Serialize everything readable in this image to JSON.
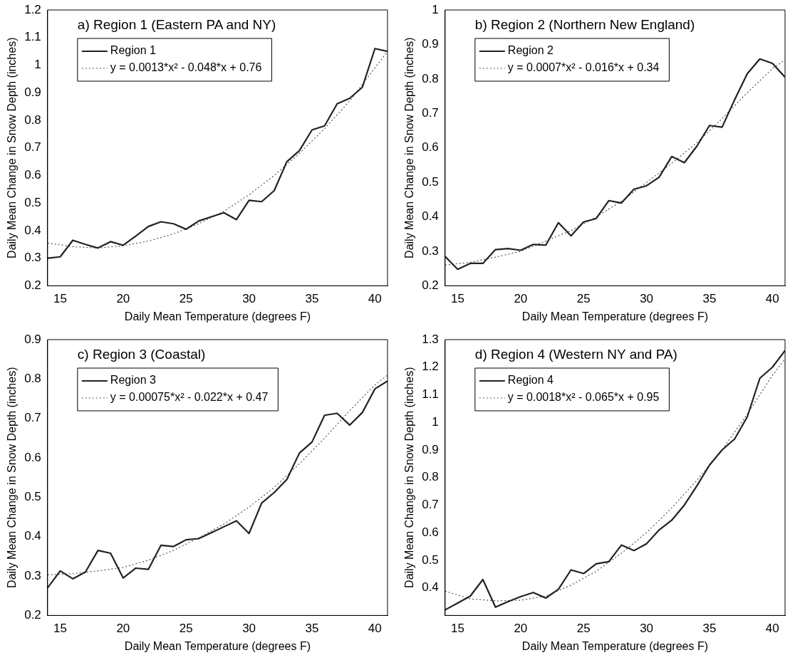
{
  "chart_data": [
    {
      "type": "line",
      "title": "a) Region 1 (Eastern PA and NY)",
      "xlabel": "Daily Mean Temperature (degrees F)",
      "ylabel": "Daily Mean Change in Snow Depth (inches)",
      "legend": "top left",
      "marker": "none",
      "xlim": [
        14,
        41
      ],
      "xticks": [
        15,
        20,
        25,
        30,
        35,
        40
      ],
      "ylim": [
        0.2,
        1.2
      ],
      "yticks": [
        0.2,
        0.3,
        0.4,
        0.5,
        0.6,
        0.7,
        0.8,
        0.9,
        1,
        1.1,
        1.2
      ],
      "x": [
        14,
        15,
        16,
        17,
        18,
        19,
        20,
        21,
        22,
        23,
        24,
        25,
        26,
        27,
        28,
        29,
        30,
        31,
        32,
        33,
        34,
        35,
        36,
        37,
        38,
        39,
        40,
        41
      ],
      "series": [
        {
          "name": "Region 1",
          "color": "#222222",
          "line_style": "solid",
          "values": [
            0.3,
            0.305,
            0.365,
            0.35,
            0.337,
            0.36,
            0.347,
            0.38,
            0.415,
            0.432,
            0.425,
            0.405,
            0.435,
            0.45,
            0.465,
            0.44,
            0.51,
            0.505,
            0.545,
            0.65,
            0.69,
            0.765,
            0.78,
            0.86,
            0.88,
            0.92,
            1.06,
            1.05
          ]
        },
        {
          "name": "y = 0.0013*x² - 0.048*x + 0.76",
          "color": "#555555",
          "line_style": "dotted",
          "x": [
            14,
            16,
            18,
            20,
            22,
            24,
            26,
            28,
            30,
            32,
            34,
            36,
            38,
            40,
            41
          ],
          "values": [
            0.355,
            0.342,
            0.337,
            0.345,
            0.362,
            0.388,
            0.425,
            0.47,
            0.53,
            0.6,
            0.68,
            0.77,
            0.87,
            0.99,
            1.05
          ]
        }
      ]
    },
    {
      "type": "line",
      "title": "b) Region 2 (Northern New England)",
      "xlabel": "Daily Mean Temperature (degrees F)",
      "ylabel": "Daily Mean Change in Snow Depth (inches)",
      "legend": "top left",
      "marker": "none",
      "xlim": [
        14,
        41
      ],
      "xticks": [
        15,
        20,
        25,
        30,
        35,
        40
      ],
      "ylim": [
        0.2,
        1
      ],
      "yticks": [
        0.2,
        0.3,
        0.4,
        0.5,
        0.6,
        0.7,
        0.8,
        0.9,
        1
      ],
      "x": [
        14,
        15,
        16,
        17,
        18,
        19,
        20,
        21,
        22,
        23,
        24,
        25,
        26,
        27,
        28,
        29,
        30,
        31,
        32,
        33,
        34,
        35,
        36,
        37,
        38,
        39,
        40,
        41
      ],
      "series": [
        {
          "name": "Region 2",
          "color": "#222222",
          "line_style": "solid",
          "values": [
            0.285,
            0.248,
            0.265,
            0.265,
            0.305,
            0.308,
            0.303,
            0.32,
            0.318,
            0.383,
            0.345,
            0.385,
            0.395,
            0.447,
            0.44,
            0.48,
            0.49,
            0.515,
            0.575,
            0.557,
            0.605,
            0.665,
            0.66,
            0.74,
            0.815,
            0.858,
            0.845,
            0.805
          ]
        },
        {
          "name": "y = 0.0007*x² - 0.016*x + 0.34",
          "color": "#555555",
          "line_style": "dotted",
          "x": [
            14,
            16,
            18,
            20,
            22,
            24,
            26,
            28,
            30,
            32,
            34,
            36,
            38,
            40,
            41
          ],
          "values": [
            0.26,
            0.268,
            0.283,
            0.3,
            0.33,
            0.36,
            0.4,
            0.445,
            0.5,
            0.555,
            0.615,
            0.685,
            0.76,
            0.83,
            0.855
          ]
        }
      ]
    },
    {
      "type": "line",
      "title": "c) Region 3 (Coastal)",
      "xlabel": "Daily Mean Temperature (degrees F)",
      "ylabel": "Daily Mean Change in Snow Depth (inches)",
      "legend": "top left",
      "marker": "none",
      "xlim": [
        14,
        41
      ],
      "xticks": [
        15,
        20,
        25,
        30,
        35,
        40
      ],
      "ylim": [
        0.2,
        0.9
      ],
      "yticks": [
        0.2,
        0.3,
        0.4,
        0.5,
        0.6,
        0.7,
        0.8,
        0.9
      ],
      "x": [
        14,
        15,
        16,
        17,
        18,
        19,
        20,
        21,
        22,
        23,
        24,
        25,
        26,
        27,
        28,
        29,
        30,
        31,
        32,
        33,
        34,
        35,
        36,
        37,
        38,
        39,
        40,
        41
      ],
      "series": [
        {
          "name": "Region 3",
          "color": "#222222",
          "line_style": "solid",
          "values": [
            0.27,
            0.313,
            0.293,
            0.31,
            0.365,
            0.358,
            0.295,
            0.32,
            0.317,
            0.378,
            0.375,
            0.392,
            0.395,
            0.41,
            0.425,
            0.44,
            0.408,
            0.485,
            0.512,
            0.545,
            0.612,
            0.64,
            0.708,
            0.713,
            0.683,
            0.715,
            0.775,
            0.795
          ]
        },
        {
          "name": "y = 0.00075*x² - 0.022*x + 0.47",
          "color": "#555555",
          "line_style": "dotted",
          "x": [
            14,
            16,
            18,
            20,
            22,
            24,
            26,
            28,
            30,
            32,
            34,
            36,
            38,
            40,
            41
          ],
          "values": [
            0.303,
            0.306,
            0.313,
            0.322,
            0.34,
            0.365,
            0.397,
            0.432,
            0.475,
            0.525,
            0.585,
            0.65,
            0.72,
            0.785,
            0.81
          ]
        }
      ]
    },
    {
      "type": "line",
      "title": "d) Region 4 (Western NY and PA)",
      "xlabel": "Daily Mean Temperature (degrees F)",
      "ylabel": "Daily Mean Change in Snow Depth (inches)",
      "legend": "top left",
      "marker": "none",
      "xlim": [
        14,
        41
      ],
      "xticks": [
        15,
        20,
        25,
        30,
        35,
        40
      ],
      "ylim": [
        0.3,
        1.3
      ],
      "yticks": [
        0.4,
        0.5,
        0.6,
        0.7,
        0.8,
        0.9,
        1,
        1.1,
        1.2,
        1.3
      ],
      "x": [
        14,
        15,
        16,
        17,
        18,
        19,
        20,
        21,
        22,
        23,
        24,
        25,
        26,
        27,
        28,
        29,
        30,
        31,
        32,
        33,
        34,
        35,
        36,
        37,
        38,
        39,
        40,
        41
      ],
      "series": [
        {
          "name": "Region 4",
          "color": "#222222",
          "line_style": "solid",
          "values": [
            0.32,
            0.345,
            0.37,
            0.43,
            0.33,
            0.35,
            0.368,
            0.383,
            0.363,
            0.395,
            0.465,
            0.452,
            0.487,
            0.495,
            0.555,
            0.535,
            0.56,
            0.61,
            0.645,
            0.7,
            0.77,
            0.845,
            0.9,
            0.94,
            1.02,
            1.16,
            1.2,
            1.26
          ]
        },
        {
          "name": "y = 0.0018*x² - 0.065*x + 0.95",
          "color": "#555555",
          "line_style": "dotted",
          "x": [
            14,
            16,
            18,
            20,
            22,
            24,
            26,
            28,
            30,
            32,
            34,
            36,
            38,
            40,
            41
          ],
          "values": [
            0.388,
            0.36,
            0.353,
            0.355,
            0.37,
            0.41,
            0.46,
            0.525,
            0.6,
            0.69,
            0.79,
            0.9,
            1.03,
            1.17,
            1.23
          ]
        }
      ]
    }
  ]
}
